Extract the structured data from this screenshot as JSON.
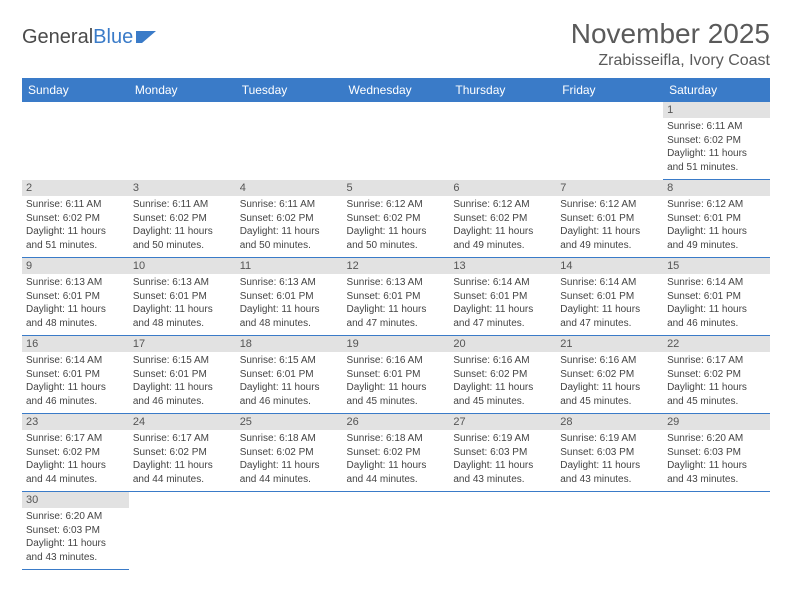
{
  "logo": {
    "text1": "General",
    "text2": "Blue"
  },
  "title": "November 2025",
  "location": "Zrabisseifla, Ivory Coast",
  "colors": {
    "header_bg": "#3a7bc8",
    "header_text": "#ffffff",
    "daynum_bg": "#e2e2e2",
    "border": "#3a7bc8",
    "text": "#444444"
  },
  "columns": [
    "Sunday",
    "Monday",
    "Tuesday",
    "Wednesday",
    "Thursday",
    "Friday",
    "Saturday"
  ],
  "weeks": [
    [
      null,
      null,
      null,
      null,
      null,
      null,
      {
        "n": "1",
        "sr": "6:11 AM",
        "ss": "6:02 PM",
        "dl": "11 hours and 51 minutes."
      }
    ],
    [
      {
        "n": "2",
        "sr": "6:11 AM",
        "ss": "6:02 PM",
        "dl": "11 hours and 51 minutes."
      },
      {
        "n": "3",
        "sr": "6:11 AM",
        "ss": "6:02 PM",
        "dl": "11 hours and 50 minutes."
      },
      {
        "n": "4",
        "sr": "6:11 AM",
        "ss": "6:02 PM",
        "dl": "11 hours and 50 minutes."
      },
      {
        "n": "5",
        "sr": "6:12 AM",
        "ss": "6:02 PM",
        "dl": "11 hours and 50 minutes."
      },
      {
        "n": "6",
        "sr": "6:12 AM",
        "ss": "6:02 PM",
        "dl": "11 hours and 49 minutes."
      },
      {
        "n": "7",
        "sr": "6:12 AM",
        "ss": "6:01 PM",
        "dl": "11 hours and 49 minutes."
      },
      {
        "n": "8",
        "sr": "6:12 AM",
        "ss": "6:01 PM",
        "dl": "11 hours and 49 minutes."
      }
    ],
    [
      {
        "n": "9",
        "sr": "6:13 AM",
        "ss": "6:01 PM",
        "dl": "11 hours and 48 minutes."
      },
      {
        "n": "10",
        "sr": "6:13 AM",
        "ss": "6:01 PM",
        "dl": "11 hours and 48 minutes."
      },
      {
        "n": "11",
        "sr": "6:13 AM",
        "ss": "6:01 PM",
        "dl": "11 hours and 48 minutes."
      },
      {
        "n": "12",
        "sr": "6:13 AM",
        "ss": "6:01 PM",
        "dl": "11 hours and 47 minutes."
      },
      {
        "n": "13",
        "sr": "6:14 AM",
        "ss": "6:01 PM",
        "dl": "11 hours and 47 minutes."
      },
      {
        "n": "14",
        "sr": "6:14 AM",
        "ss": "6:01 PM",
        "dl": "11 hours and 47 minutes."
      },
      {
        "n": "15",
        "sr": "6:14 AM",
        "ss": "6:01 PM",
        "dl": "11 hours and 46 minutes."
      }
    ],
    [
      {
        "n": "16",
        "sr": "6:14 AM",
        "ss": "6:01 PM",
        "dl": "11 hours and 46 minutes."
      },
      {
        "n": "17",
        "sr": "6:15 AM",
        "ss": "6:01 PM",
        "dl": "11 hours and 46 minutes."
      },
      {
        "n": "18",
        "sr": "6:15 AM",
        "ss": "6:01 PM",
        "dl": "11 hours and 46 minutes."
      },
      {
        "n": "19",
        "sr": "6:16 AM",
        "ss": "6:01 PM",
        "dl": "11 hours and 45 minutes."
      },
      {
        "n": "20",
        "sr": "6:16 AM",
        "ss": "6:02 PM",
        "dl": "11 hours and 45 minutes."
      },
      {
        "n": "21",
        "sr": "6:16 AM",
        "ss": "6:02 PM",
        "dl": "11 hours and 45 minutes."
      },
      {
        "n": "22",
        "sr": "6:17 AM",
        "ss": "6:02 PM",
        "dl": "11 hours and 45 minutes."
      }
    ],
    [
      {
        "n": "23",
        "sr": "6:17 AM",
        "ss": "6:02 PM",
        "dl": "11 hours and 44 minutes."
      },
      {
        "n": "24",
        "sr": "6:17 AM",
        "ss": "6:02 PM",
        "dl": "11 hours and 44 minutes."
      },
      {
        "n": "25",
        "sr": "6:18 AM",
        "ss": "6:02 PM",
        "dl": "11 hours and 44 minutes."
      },
      {
        "n": "26",
        "sr": "6:18 AM",
        "ss": "6:02 PM",
        "dl": "11 hours and 44 minutes."
      },
      {
        "n": "27",
        "sr": "6:19 AM",
        "ss": "6:03 PM",
        "dl": "11 hours and 43 minutes."
      },
      {
        "n": "28",
        "sr": "6:19 AM",
        "ss": "6:03 PM",
        "dl": "11 hours and 43 minutes."
      },
      {
        "n": "29",
        "sr": "6:20 AM",
        "ss": "6:03 PM",
        "dl": "11 hours and 43 minutes."
      }
    ],
    [
      {
        "n": "30",
        "sr": "6:20 AM",
        "ss": "6:03 PM",
        "dl": "11 hours and 43 minutes."
      },
      null,
      null,
      null,
      null,
      null,
      null
    ]
  ],
  "labels": {
    "sunrise": "Sunrise:",
    "sunset": "Sunset:",
    "daylight": "Daylight:"
  }
}
